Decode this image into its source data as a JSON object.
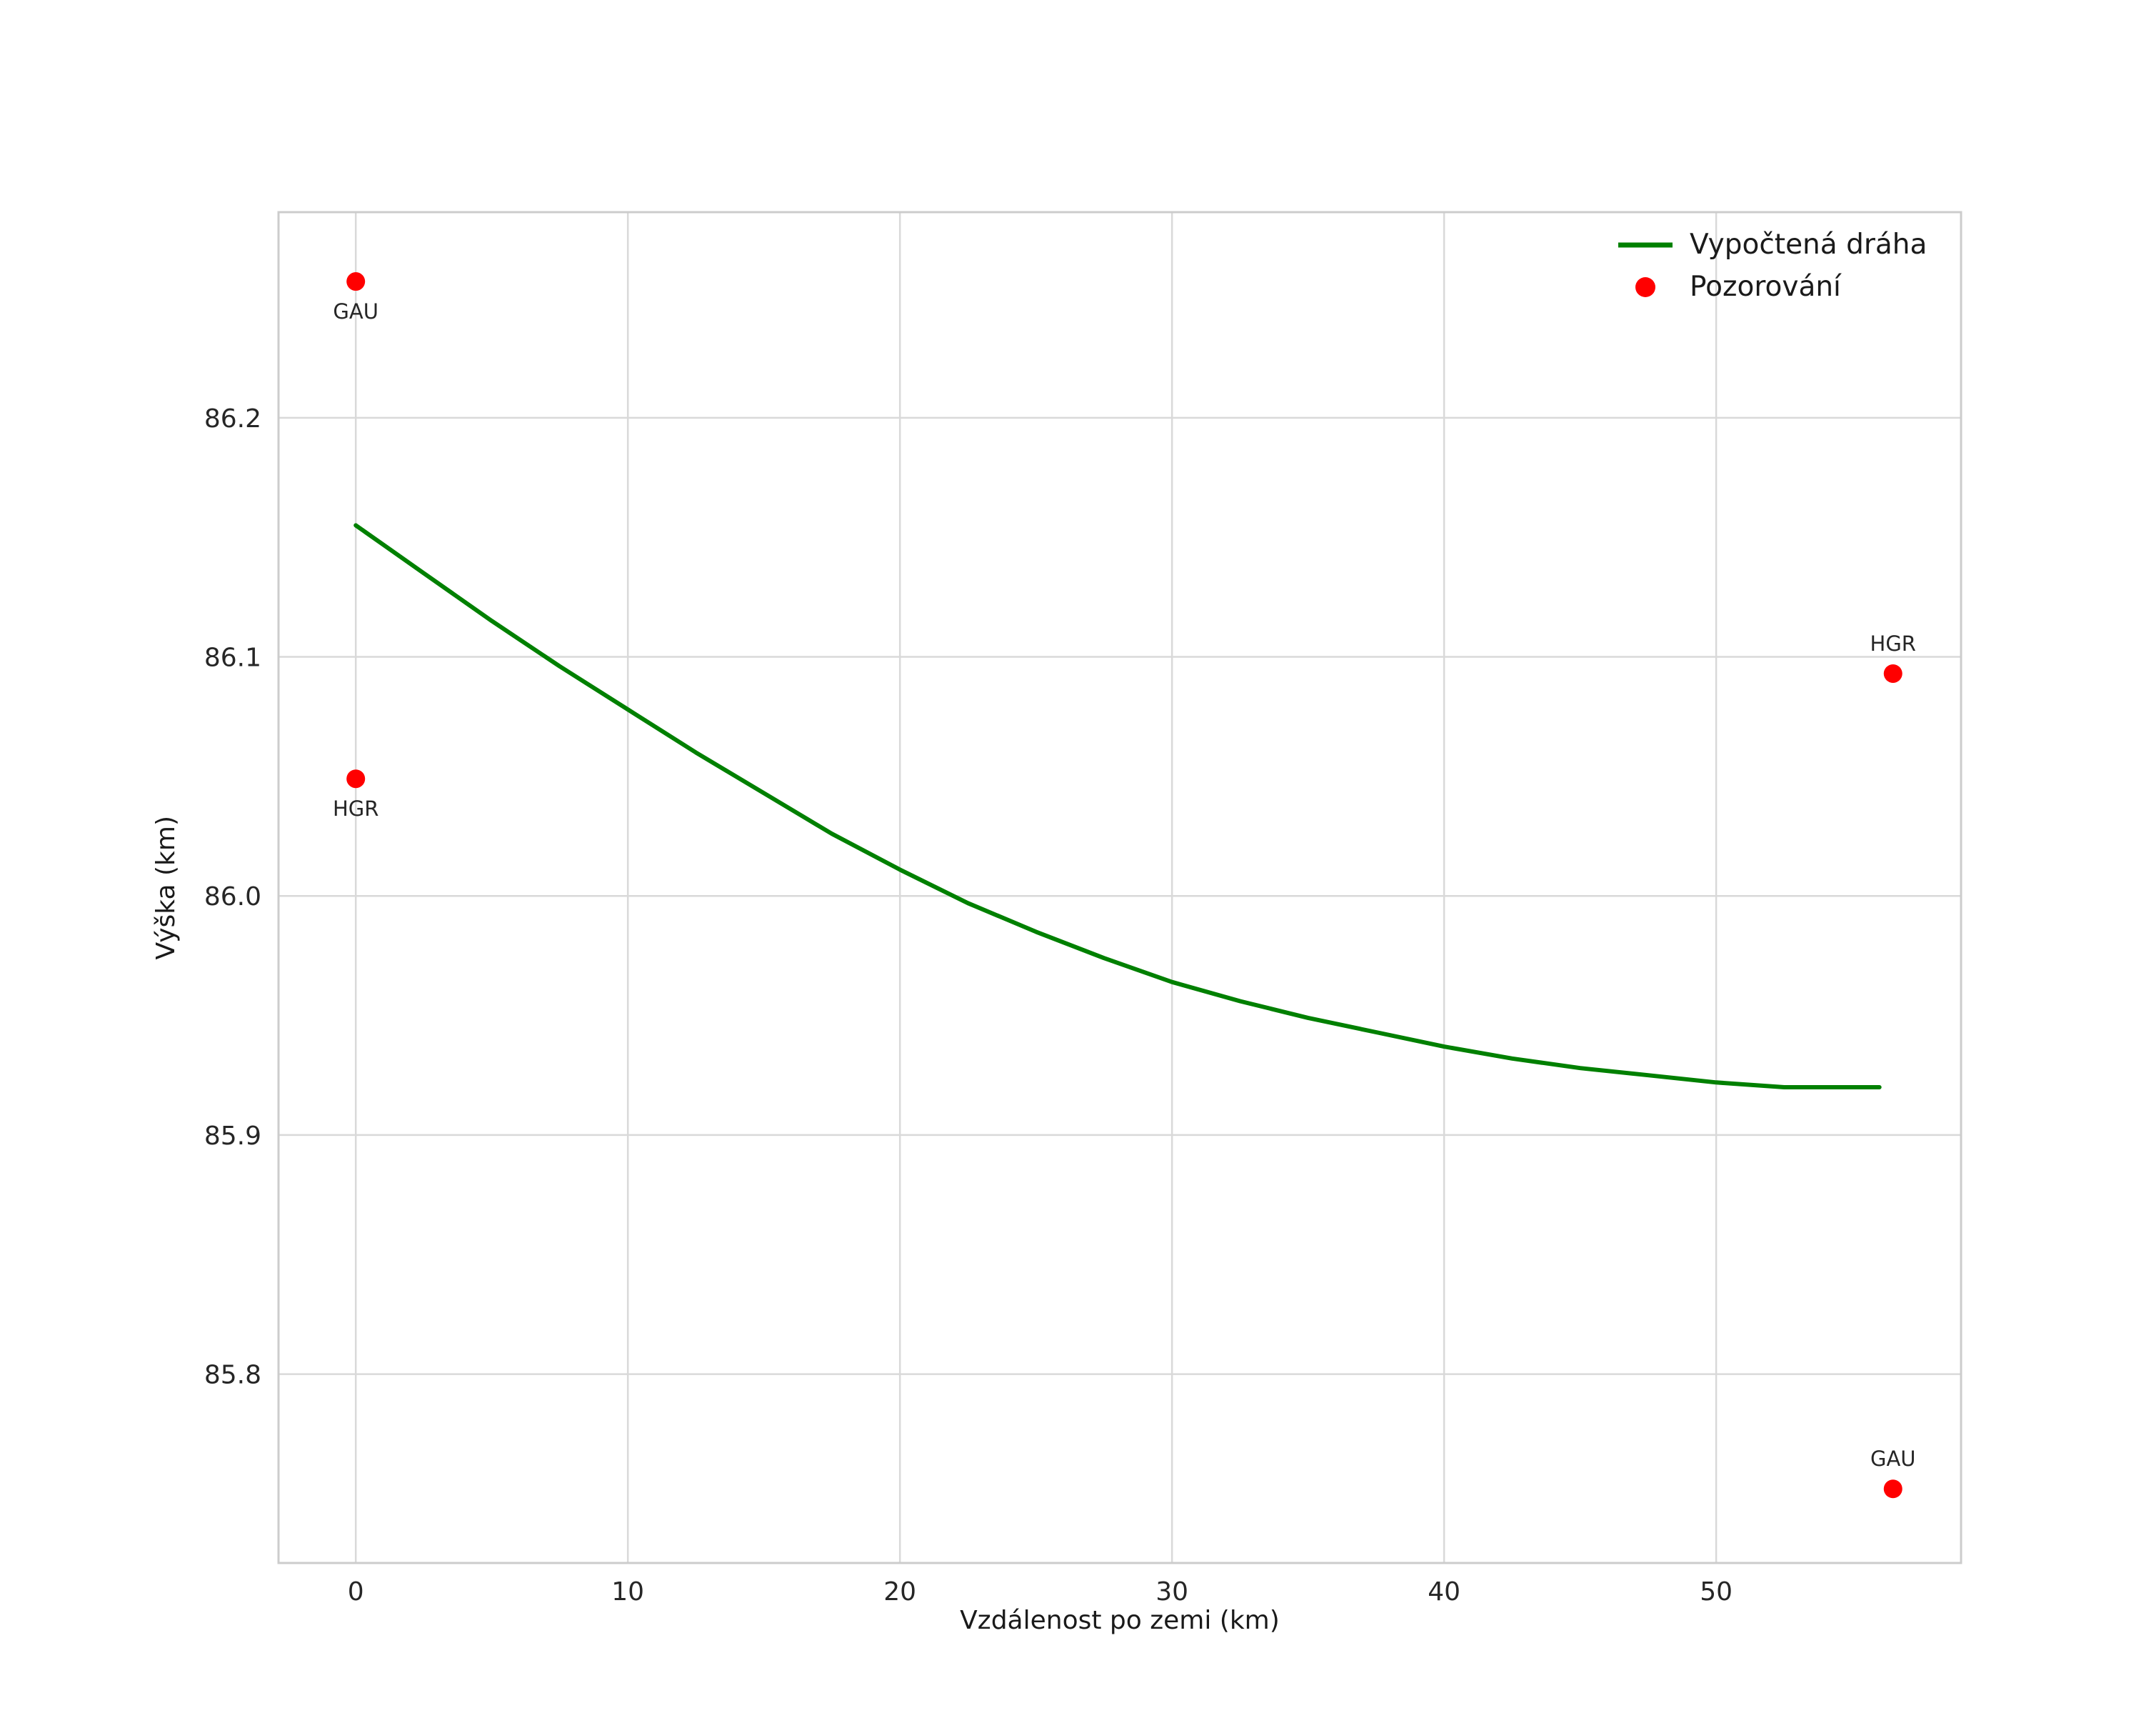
{
  "chart_data": {
    "type": "line",
    "title": "",
    "xlabel": "Vzdálenost po zemi (km)",
    "ylabel": "Výška (km)",
    "xlim": [
      -2.84,
      59.0
    ],
    "ylim": [
      85.721,
      86.286
    ],
    "xticks": [
      0,
      10,
      20,
      30,
      40,
      50
    ],
    "yticks": [
      "85.8",
      "85.9",
      "86.0",
      "86.1",
      "86.2"
    ],
    "grid": true,
    "colors": {
      "grid": "#d9d9d9",
      "frame": "#cccccc",
      "trajectory": "#008000",
      "observation": "#ff0000",
      "text": "#262626"
    },
    "legend": {
      "position": "upper right",
      "entries": [
        {
          "label": "Vypočtená dráha",
          "type": "line",
          "color": "#008000"
        },
        {
          "label": "Pozorování",
          "type": "point",
          "color": "#ff0000"
        }
      ]
    },
    "series": [
      {
        "name": "Vypočtená dráha",
        "type": "line",
        "color": "#008000",
        "x": [
          0,
          2.5,
          5,
          7.5,
          10,
          12.5,
          15,
          17.5,
          20,
          22.5,
          25,
          27.5,
          30,
          32.5,
          35,
          37.5,
          40,
          42.5,
          45,
          47.5,
          50,
          52.5,
          56
        ],
        "y": [
          86.155,
          86.135,
          86.115,
          86.096,
          86.078,
          86.06,
          86.043,
          86.026,
          86.011,
          85.997,
          85.985,
          85.974,
          85.964,
          85.956,
          85.949,
          85.943,
          85.937,
          85.932,
          85.928,
          85.925,
          85.922,
          85.92,
          85.92
        ]
      },
      {
        "name": "Pozorování",
        "type": "scatter",
        "color": "#ff0000",
        "points": [
          {
            "x": 0,
            "y": 86.257,
            "label": "GAU",
            "label_pos": "below"
          },
          {
            "x": 0,
            "y": 86.049,
            "label": "HGR",
            "label_pos": "below"
          },
          {
            "x": 56.5,
            "y": 86.093,
            "label": "HGR",
            "label_pos": "above"
          },
          {
            "x": 56.5,
            "y": 85.752,
            "label": "GAU",
            "label_pos": "above"
          }
        ]
      }
    ]
  }
}
